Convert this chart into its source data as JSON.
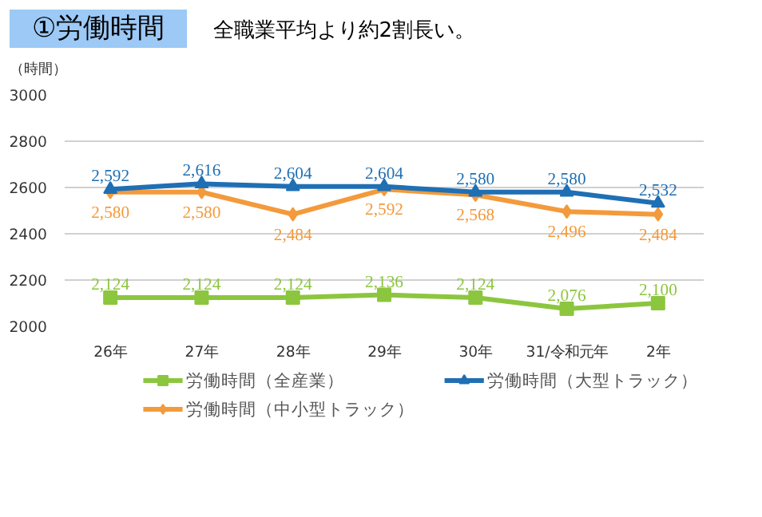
{
  "chart_data": {
    "type": "line",
    "title": "①労働時間",
    "subtitle": "全職業平均より約2割長い。",
    "ylabel": "（時間）",
    "categories": [
      "26年",
      "27年",
      "28年",
      "29年",
      "30年",
      "31/令和元年",
      "2年"
    ],
    "series": [
      {
        "name": "労働時間（全産業）",
        "color": "#8cc63f",
        "marker": "square",
        "values": [
          2124,
          2124,
          2124,
          2136,
          2124,
          2076,
          2100
        ],
        "value_labels": [
          "2,124",
          "2,124",
          "2,124",
          "2,136",
          "2,124",
          "2,076",
          "2,100"
        ]
      },
      {
        "name": "労働時間（中小型トラック）",
        "color": "#f39a3c",
        "marker": "diamond",
        "values": [
          2580,
          2580,
          2484,
          2592,
          2568,
          2496,
          2484
        ],
        "value_labels": [
          "2,580",
          "2,580",
          "2,484",
          "2,592",
          "2,568",
          "2,496",
          "2,484"
        ]
      },
      {
        "name": "労働時間（大型トラック）",
        "color": "#1f6fb4",
        "marker": "triangle",
        "values": [
          2592,
          2616,
          2604,
          2604,
          2580,
          2580,
          2532
        ],
        "value_labels": [
          "2,592",
          "2,616",
          "2,604",
          "2,604",
          "2,580",
          "2,580",
          "2,532"
        ]
      }
    ],
    "ylim": [
      2000,
      3000
    ],
    "yticks": [
      2000,
      2200,
      2400,
      2600,
      2800,
      3000
    ],
    "grid": "y",
    "legend": "bottom"
  }
}
